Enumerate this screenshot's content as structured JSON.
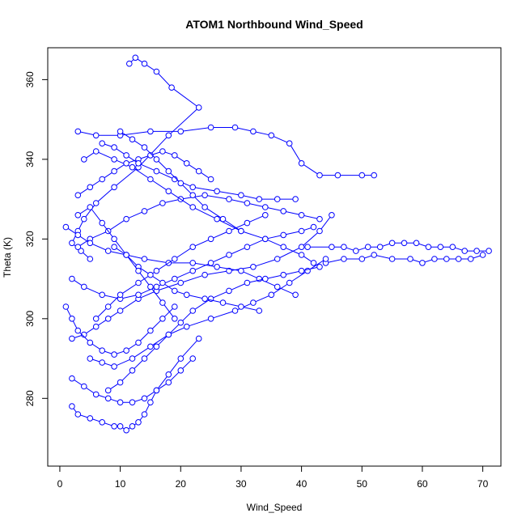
{
  "chart_data": {
    "type": "line",
    "title": "ATOM1 Northbound Wind_Speed",
    "xlabel": "Wind_Speed",
    "ylabel": "Theta (K)",
    "xlim": [
      -2,
      73
    ],
    "ylim": [
      263,
      368
    ],
    "x_ticks": [
      0,
      10,
      20,
      30,
      40,
      50,
      60,
      70
    ],
    "y_ticks": [
      280,
      300,
      320,
      340,
      360
    ],
    "grid": false,
    "legend": "none",
    "color": "#0000ff",
    "marker": "open-circle",
    "series": [
      {
        "x": [
          11.5,
          12.5,
          14,
          16,
          18.5,
          23,
          18,
          13,
          9,
          6,
          4,
          3,
          2,
          3.5,
          5
        ],
        "y": [
          364,
          365.5,
          364,
          362,
          358,
          353,
          346,
          338,
          333,
          329,
          325,
          322,
          319,
          317,
          315
        ]
      },
      {
        "x": [
          3,
          6,
          10,
          15,
          20,
          25,
          29,
          32,
          35,
          38,
          40,
          43,
          46,
          50,
          52
        ],
        "y": [
          347,
          346,
          346,
          347,
          347,
          348,
          348,
          347,
          346,
          344,
          339,
          336,
          336,
          336,
          336
        ]
      },
      {
        "x": [
          41,
          45,
          47,
          49,
          51,
          53,
          55,
          57,
          59,
          61,
          63,
          65,
          67,
          69,
          71
        ],
        "y": [
          318,
          318,
          318,
          317,
          318,
          318,
          319,
          319,
          319,
          318,
          318,
          318,
          317,
          317,
          317
        ]
      },
      {
        "x": [
          44,
          47,
          50,
          52,
          55,
          58,
          60,
          62,
          64,
          66,
          68,
          70
        ],
        "y": [
          314,
          315,
          315,
          316,
          315,
          315,
          314,
          315,
          315,
          315,
          315,
          316
        ]
      },
      {
        "x": [
          2,
          3,
          5,
          7,
          9,
          10,
          11,
          12,
          13,
          14,
          15,
          16,
          18,
          20,
          23
        ],
        "y": [
          278,
          276,
          275,
          274,
          273,
          273,
          272,
          273,
          274,
          276,
          279,
          282,
          286,
          290,
          295
        ]
      },
      {
        "x": [
          2,
          4,
          6,
          8,
          10,
          13,
          16,
          20,
          24,
          28,
          32,
          36,
          40,
          43,
          45
        ],
        "y": [
          295,
          296,
          298,
          300,
          302,
          305,
          307,
          309,
          311,
          312,
          313,
          315,
          318,
          322,
          326
        ]
      },
      {
        "x": [
          3,
          5,
          8,
          11,
          14,
          17,
          20,
          24,
          28,
          31,
          34,
          37,
          40,
          43
        ],
        "y": [
          318,
          320,
          322,
          325,
          327,
          329,
          330,
          331,
          330,
          329,
          328,
          327,
          326,
          325
        ]
      },
      {
        "x": [
          1,
          3,
          5,
          8,
          11,
          14,
          18,
          22,
          26,
          30,
          33,
          36,
          39
        ],
        "y": [
          323,
          321,
          319,
          317,
          316,
          315,
          314,
          314,
          313,
          312,
          310,
          308,
          306
        ]
      },
      {
        "x": [
          5,
          7,
          9,
          12,
          15,
          18,
          21,
          25,
          29,
          32,
          35,
          38,
          41,
          44
        ],
        "y": [
          290,
          289,
          288,
          290,
          293,
          296,
          298,
          300,
          302,
          304,
          306,
          309,
          312,
          315
        ]
      },
      {
        "x": [
          4,
          6,
          9,
          12,
          15,
          18,
          22,
          26,
          30,
          34,
          37,
          40,
          42
        ],
        "y": [
          340,
          342,
          340,
          338,
          335,
          332,
          328,
          325,
          322,
          320,
          318,
          316,
          314
        ]
      },
      {
        "x": [
          2,
          4,
          7,
          10,
          13,
          16,
          19,
          22,
          25,
          28,
          31,
          34,
          37,
          40,
          42
        ],
        "y": [
          310,
          308,
          306,
          305,
          306,
          308,
          310,
          312,
          314,
          316,
          318,
          320,
          321,
          322,
          323
        ]
      },
      {
        "x": [
          6,
          8,
          10,
          13,
          16,
          19,
          22,
          25,
          28,
          31,
          34
        ],
        "y": [
          300,
          303,
          306,
          309,
          312,
          315,
          318,
          320,
          322,
          324,
          326
        ]
      },
      {
        "x": [
          3,
          5,
          7,
          9,
          11,
          13,
          15,
          17,
          19,
          21,
          23,
          25
        ],
        "y": [
          331,
          333,
          335,
          337,
          339,
          340,
          341,
          342,
          341,
          339,
          337,
          335
        ]
      },
      {
        "x": [
          8,
          10,
          12,
          14,
          16,
          18,
          20,
          22,
          25,
          28,
          31,
          34,
          37,
          40,
          43
        ],
        "y": [
          282,
          284,
          287,
          290,
          293,
          296,
          299,
          302,
          305,
          307,
          309,
          310,
          311,
          312,
          313
        ]
      },
      {
        "x": [
          1,
          2,
          3,
          5,
          7,
          9,
          11,
          13,
          15,
          17,
          19
        ],
        "y": [
          303,
          300,
          297,
          294,
          292,
          291,
          292,
          294,
          297,
          300,
          303
        ]
      },
      {
        "x": [
          7,
          9,
          11,
          13,
          16,
          19,
          22,
          26,
          30,
          33,
          36,
          39
        ],
        "y": [
          344,
          343,
          341,
          339,
          337,
          335,
          333,
          332,
          331,
          330,
          330,
          330
        ]
      },
      {
        "x": [
          2,
          4,
          6,
          8,
          10,
          12,
          14,
          16,
          18,
          20,
          22
        ],
        "y": [
          285,
          283,
          281,
          280,
          279,
          279,
          280,
          282,
          284,
          287,
          290
        ]
      },
      {
        "x": [
          9,
          11,
          13,
          15,
          17,
          19,
          21,
          24,
          27,
          30,
          33
        ],
        "y": [
          318,
          316,
          313,
          311,
          309,
          307,
          306,
          305,
          304,
          303,
          302
        ]
      },
      {
        "x": [
          3,
          5,
          7,
          9,
          11,
          13,
          15,
          17,
          19
        ],
        "y": [
          326,
          328,
          324,
          320,
          316,
          312,
          308,
          304,
          300
        ]
      },
      {
        "x": [
          10,
          12,
          14,
          16,
          18,
          20,
          22,
          24,
          27,
          30
        ],
        "y": [
          347,
          345,
          343,
          340,
          337,
          334,
          331,
          328,
          325,
          322
        ]
      }
    ]
  }
}
